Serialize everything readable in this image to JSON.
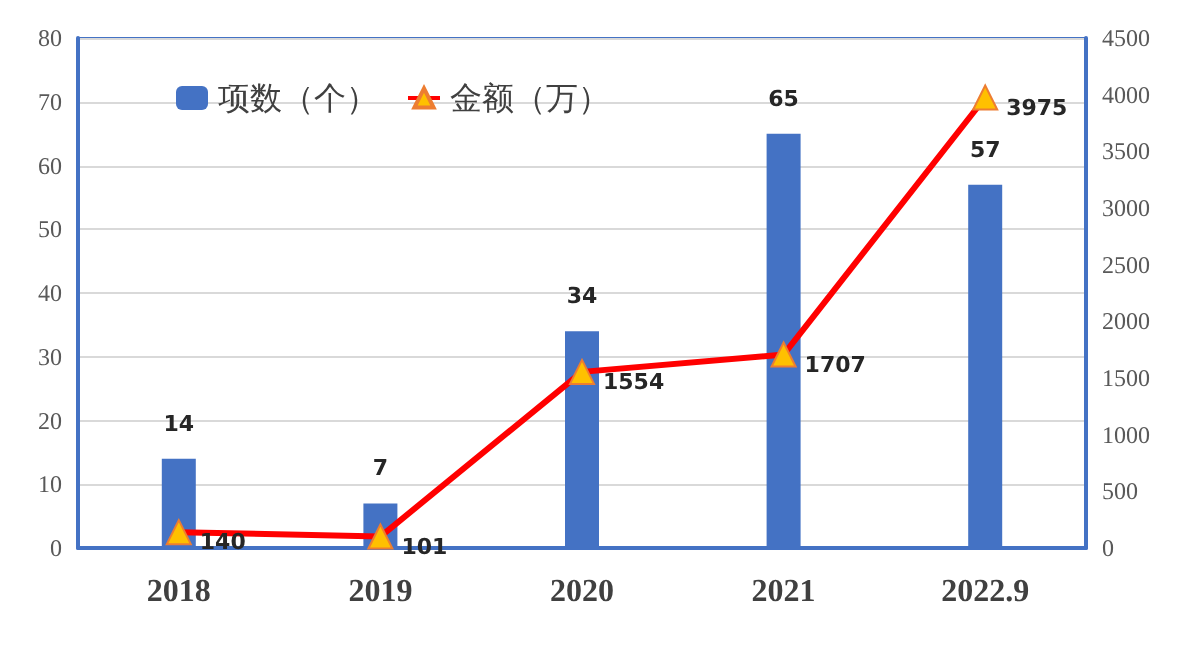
{
  "chart_data": {
    "type": "bar",
    "categories": [
      "2018",
      "2019",
      "2020",
      "2021",
      "2022.9"
    ],
    "series": [
      {
        "name": "项数（个）",
        "color": "#4472c4",
        "values": [
          14,
          7,
          34,
          65,
          57
        ]
      },
      {
        "name": "金额（万）",
        "type": "line",
        "axis": "y2",
        "color": "#ff0000",
        "values": [
          140,
          101,
          1554,
          1707,
          3975
        ]
      }
    ],
    "ylim": [
      0,
      80
    ],
    "yticks": [
      0,
      10,
      20,
      30,
      40,
      50,
      60,
      70,
      80
    ],
    "y2lim": [
      0,
      4500
    ],
    "y2ticks": [
      0,
      500,
      1000,
      1500,
      2000,
      2500,
      3000,
      3500,
      4000,
      4500
    ],
    "data_labels": true,
    "grid": "y",
    "legend": "top left",
    "marker": "triangle",
    "line_style": "solid"
  }
}
